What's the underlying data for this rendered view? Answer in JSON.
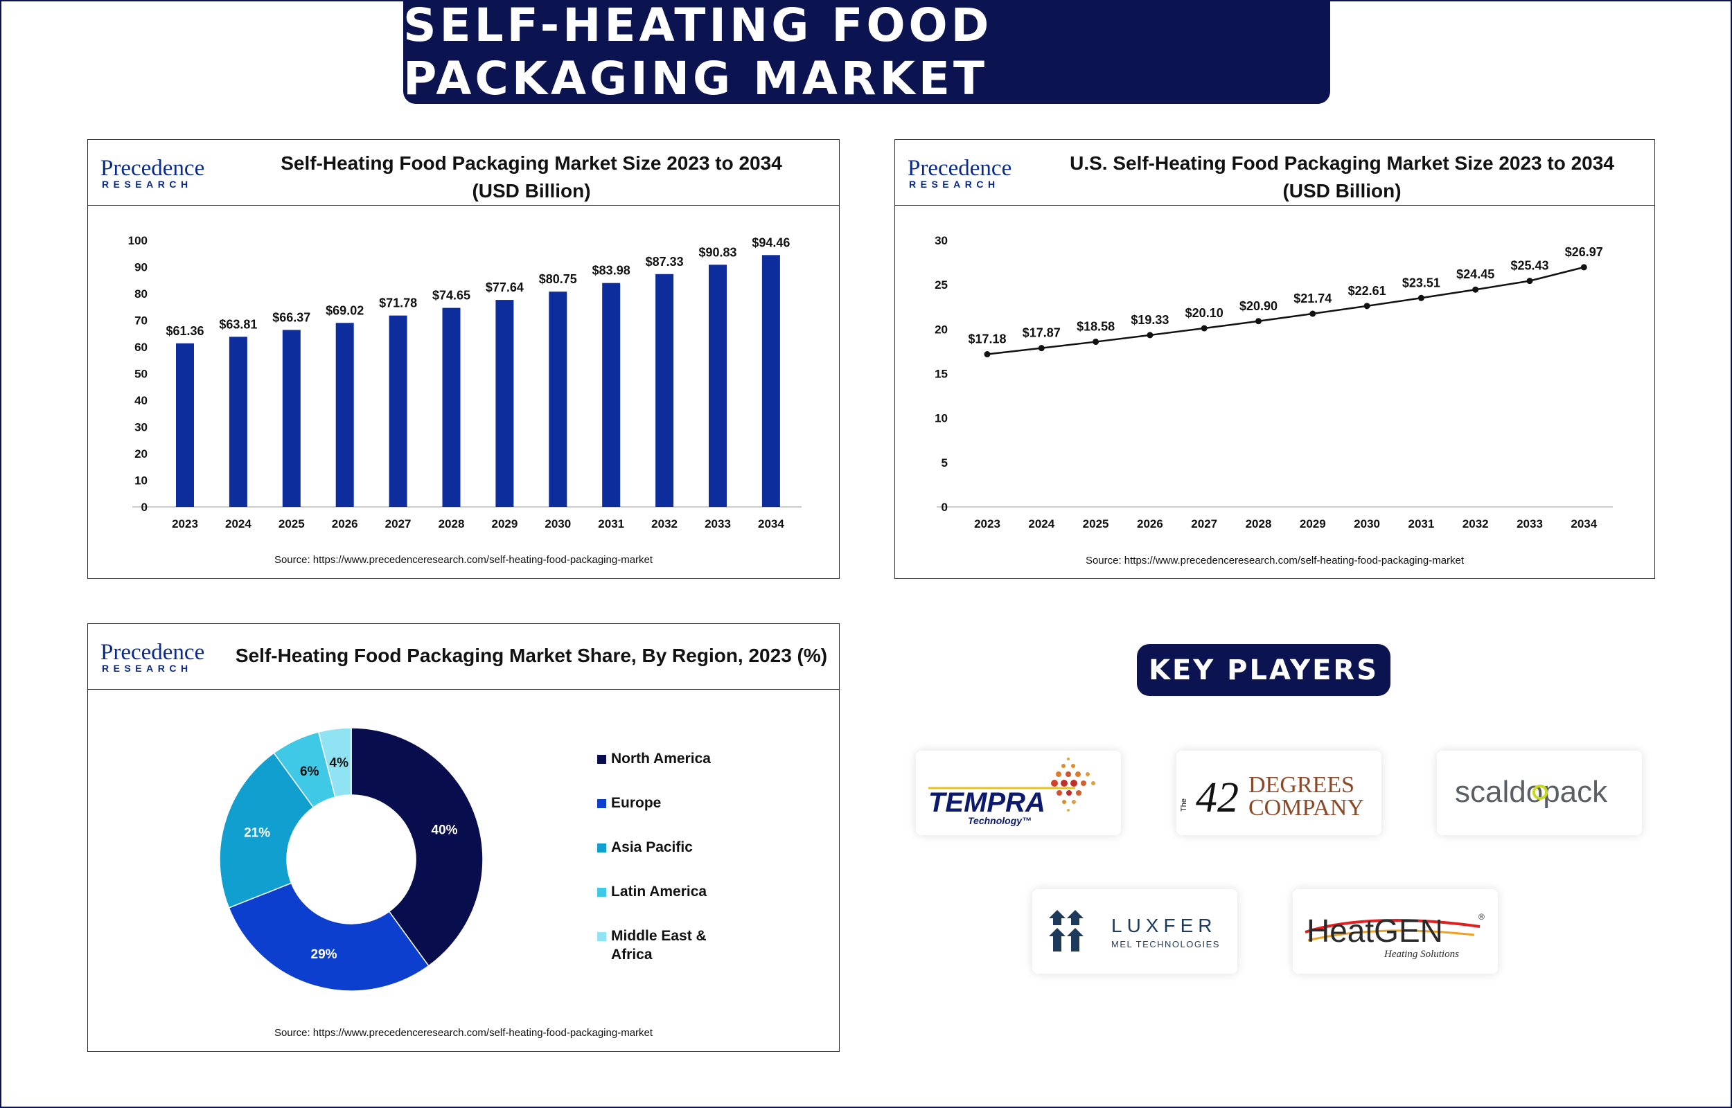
{
  "banner": {
    "title": "SELF-HEATING FOOD PACKAGING MARKET"
  },
  "brand": {
    "name_main": "Precedence",
    "name_sub": "RESEARCH"
  },
  "source_text": "Source: https://www.precedenceresearch.com/self-heating-food-packaging-market",
  "colors": {
    "navy": "#0b1450",
    "bar": "#0d2d9c",
    "line": "#111111"
  },
  "global_chart": {
    "title_line1": "Self-Heating Food Packaging Market Size 2023 to 2034",
    "title_line2": "(USD Billion)"
  },
  "us_chart": {
    "title_line1": "U.S. Self-Heating Food Packaging Market Size 2023 to 2034",
    "title_line2": "(USD Billion)"
  },
  "region_chart": {
    "title": "Self-Heating Food Packaging Market Share, By Region, 2023 (%)"
  },
  "key_players": {
    "heading": "KEY PLAYERS",
    "players": [
      {
        "name": "TEMPRA",
        "sub": "Technology™"
      },
      {
        "number": "42",
        "line1": "DEGREES",
        "line2": "COMPANY",
        "side": "The"
      },
      {
        "name": "scaldopack"
      },
      {
        "name": "LUXFER",
        "sub": "MEL TECHNOLOGIES"
      },
      {
        "name": "HeatGEN",
        "sub": "Heating Solutions",
        "reg": "®"
      }
    ]
  },
  "chart_data": [
    {
      "type": "bar",
      "title": "Self-Heating Food Packaging Market Size 2023 to 2034 (USD Billion)",
      "categories": [
        "2023",
        "2024",
        "2025",
        "2026",
        "2027",
        "2028",
        "2029",
        "2030",
        "2031",
        "2032",
        "2033",
        "2034"
      ],
      "values": [
        61.36,
        63.81,
        66.37,
        69.02,
        71.78,
        74.65,
        77.64,
        80.75,
        83.98,
        87.33,
        90.83,
        94.46
      ],
      "labels": [
        "$61.36",
        "$63.81",
        "$66.37",
        "$69.02",
        "$71.78",
        "$74.65",
        "$77.64",
        "$80.75",
        "$83.98",
        "$87.33",
        "$90.83",
        "$94.46"
      ],
      "ylim": [
        0,
        100
      ],
      "yticks": [
        "0",
        "10",
        "20",
        "30",
        "40",
        "50",
        "60",
        "70",
        "80",
        "90",
        "100"
      ],
      "grid": false
    },
    {
      "type": "line",
      "title": "U.S. Self-Heating Food Packaging Market Size 2023 to 2034 (USD Billion)",
      "categories": [
        "2023",
        "2024",
        "2025",
        "2026",
        "2027",
        "2028",
        "2029",
        "2030",
        "2031",
        "2032",
        "2033",
        "2034"
      ],
      "values": [
        17.18,
        17.87,
        18.58,
        19.33,
        20.1,
        20.9,
        21.74,
        22.61,
        23.51,
        24.45,
        25.43,
        26.97
      ],
      "labels": [
        "$17.18",
        "$17.87",
        "$18.58",
        "$19.33",
        "$20.10",
        "$20.90",
        "$21.74",
        "$22.61",
        "$23.51",
        "$24.45",
        "$25.43",
        "$26.97"
      ],
      "ylim": [
        0,
        30
      ],
      "yticks": [
        "0",
        "5",
        "10",
        "15",
        "20",
        "25",
        "30"
      ],
      "grid": false
    },
    {
      "type": "pie",
      "title": "Self-Heating Food Packaging Market Share, By Region, 2023 (%)",
      "donut": true,
      "legend_position": "right",
      "slices": [
        {
          "name": "North America",
          "value": 40,
          "label": "40%",
          "color": "#080d4d"
        },
        {
          "name": "Europe",
          "value": 29,
          "label": "29%",
          "color": "#0d3fcf"
        },
        {
          "name": "Asia Pacific",
          "value": 21,
          "label": "21%",
          "color": "#119fcf"
        },
        {
          "name": "Latin America",
          "value": 6,
          "label": "6%",
          "color": "#3fc9e6"
        },
        {
          "name": "Middle East & Africa",
          "value": 4,
          "label": "4%",
          "color": "#8fe3f2"
        }
      ]
    }
  ]
}
